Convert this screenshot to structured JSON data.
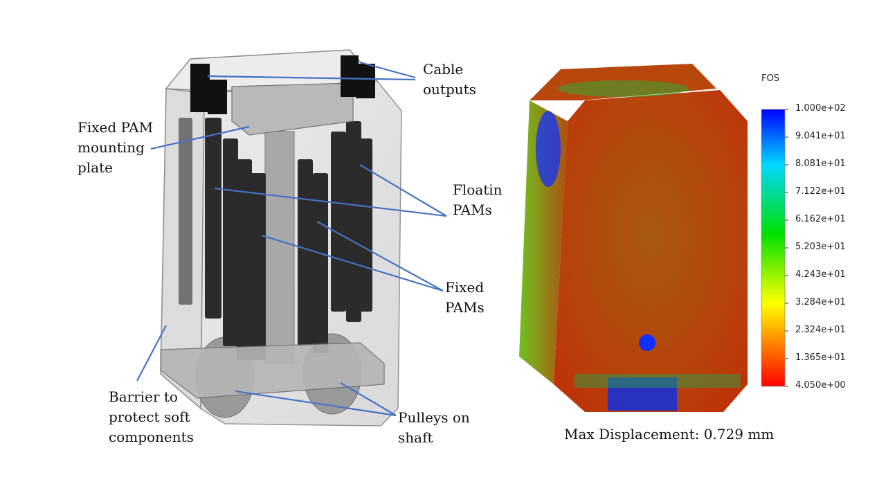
{
  "left_figure": {
    "labels": {
      "cable_outputs": "Cable\noutputs",
      "fixed_plate": "Fixed PAM\nmounting\nplate",
      "floating_pams": "Floatin\nPAMs",
      "fixed_pams": "Fixed\nPAMs",
      "barrier": "Barrier to\nprotect soft\ncomponents",
      "pulleys": "Pulleys on\nshaft"
    },
    "colors": {
      "leader": "#4472C4",
      "housing_edge": "#8a8a8a",
      "pam": "#2b2b2b"
    }
  },
  "right_figure": {
    "caption": "Max Displacement: 0.729 mm",
    "legend": {
      "title": "FOS",
      "ticks": [
        "1.000e+02",
        "9.041e+01",
        "8.081e+01",
        "7.122e+01",
        "6.162e+01",
        "5.203e+01",
        "4.243e+01",
        "3.284e+01",
        "2.324e+01",
        "1.365e+01",
        "4.050e+00"
      ]
    },
    "colors": {
      "max": "#0000ff",
      "high": "#00e5ff",
      "mid": "#00e000",
      "low_mid": "#ffff00",
      "min": "#ff0000",
      "body": "#b04010"
    }
  }
}
